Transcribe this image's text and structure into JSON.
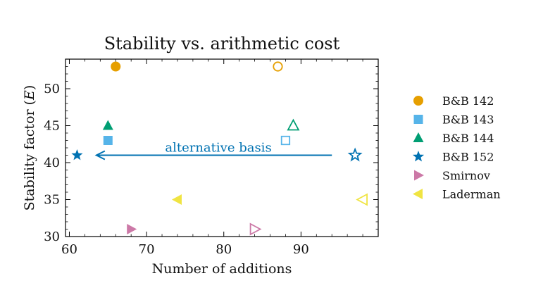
{
  "chart_data": {
    "type": "scatter",
    "title": "Stability vs. arithmetic cost",
    "xlabel": "Number of additions",
    "ylabel": "Stability factor (E)",
    "xlim": [
      59.5,
      100
    ],
    "ylim": [
      30,
      54
    ],
    "xticks": [
      60,
      70,
      80,
      90
    ],
    "yticks": [
      30,
      35,
      40,
      45,
      50
    ],
    "grid": false,
    "legend_position": "right",
    "series": [
      {
        "name": "B&B 142",
        "marker": "circle",
        "color": "#E69F00",
        "points": [
          {
            "x": 66,
            "y": 53,
            "filled": true
          },
          {
            "x": 87,
            "y": 53,
            "filled": false
          }
        ]
      },
      {
        "name": "B&B 143",
        "marker": "square",
        "color": "#56B4E9",
        "points": [
          {
            "x": 65,
            "y": 43,
            "filled": true
          },
          {
            "x": 88,
            "y": 43,
            "filled": false
          }
        ]
      },
      {
        "name": "B&B 144",
        "marker": "triangle-up",
        "color": "#009E73",
        "points": [
          {
            "x": 65,
            "y": 45,
            "filled": true
          },
          {
            "x": 89,
            "y": 45,
            "filled": false
          }
        ]
      },
      {
        "name": "B&B 152",
        "marker": "star",
        "color": "#0072B2",
        "points": [
          {
            "x": 61,
            "y": 41,
            "filled": true
          },
          {
            "x": 97,
            "y": 41,
            "filled": false
          }
        ]
      },
      {
        "name": "Smirnov",
        "marker": "triangle-right",
        "color": "#CC79A7",
        "points": [
          {
            "x": 68,
            "y": 31,
            "filled": true
          },
          {
            "x": 84,
            "y": 31,
            "filled": false
          }
        ]
      },
      {
        "name": "Laderman",
        "marker": "triangle-left",
        "color": "#F0E442",
        "points": [
          {
            "x": 74,
            "y": 35,
            "filled": true
          },
          {
            "x": 98,
            "y": 35,
            "filled": false
          }
        ]
      }
    ],
    "annotations": [
      {
        "text": "alternative basis",
        "arrow_from": [
          94,
          41
        ],
        "arrow_to": [
          63.5,
          41
        ],
        "color": "#0072B2"
      }
    ]
  }
}
